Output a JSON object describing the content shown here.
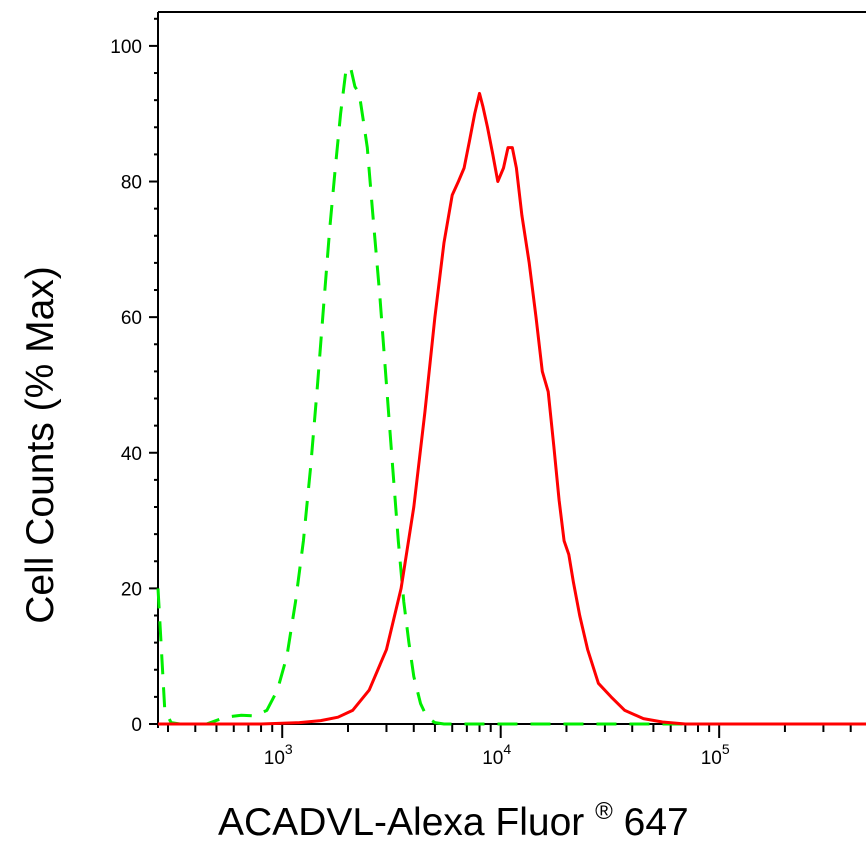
{
  "chart_data": {
    "type": "line",
    "xlabel": "ACADVL-Alexa Fluor",
    "xlabel_mark": "®",
    "xlabel_suffix": " 647",
    "ylabel": "Cell Counts (% Max)",
    "x_scale": "log",
    "xlim": [
      270,
      470000
    ],
    "ylim": [
      0,
      105
    ],
    "y_ticks": [
      0,
      20,
      40,
      60,
      80,
      100
    ],
    "x_ticks": [
      {
        "value": 1000,
        "base": "10",
        "exp": "3"
      },
      {
        "value": 10000,
        "base": "10",
        "exp": "4"
      },
      {
        "value": 100000,
        "base": "10",
        "exp": "5"
      }
    ],
    "grid": false,
    "series": [
      {
        "color": "#00ee00",
        "style": "dashed",
        "x": [
          270,
          290,
          310,
          340,
          380,
          450,
          550,
          650,
          750,
          850,
          950,
          1050,
          1150,
          1250,
          1350,
          1450,
          1550,
          1650,
          1750,
          1850,
          1950,
          2050,
          2150,
          2250,
          2350,
          2450,
          2600,
          2800,
          3000,
          3200,
          3400,
          3600,
          3800,
          4000,
          4300,
          4600,
          5000,
          5500,
          7000,
          10000,
          50000,
          470000
        ],
        "y": [
          20,
          2,
          0.2,
          0,
          0,
          0,
          1,
          1.3,
          1.2,
          2,
          5,
          10,
          18,
          27,
          38,
          50,
          62,
          73,
          82,
          90,
          96,
          97,
          94,
          93,
          89,
          85,
          75,
          63,
          50,
          38,
          27,
          18,
          12,
          7,
          3,
          1,
          0.2,
          0,
          0,
          0,
          0,
          0
        ]
      },
      {
        "color": "#ff0000",
        "style": "solid",
        "x": [
          270,
          800,
          1200,
          1500,
          1800,
          2100,
          2500,
          3000,
          3500,
          4000,
          4500,
          5000,
          5500,
          6000,
          6400,
          6800,
          7200,
          7600,
          8000,
          8300,
          8700,
          9200,
          9700,
          10300,
          10800,
          11300,
          11800,
          12500,
          13500,
          14500,
          15500,
          16500,
          17500,
          18500,
          19500,
          20500,
          21500,
          23000,
          25000,
          28000,
          32000,
          37000,
          45000,
          55000,
          70000,
          100000,
          470000
        ],
        "y": [
          0,
          0,
          0.2,
          0.5,
          1,
          2,
          5,
          11,
          20,
          32,
          46,
          60,
          71,
          78,
          80,
          82,
          86,
          90,
          93,
          91,
          88,
          84,
          80,
          82,
          85,
          85,
          82,
          75,
          68,
          60,
          52,
          49,
          41,
          33,
          27,
          25,
          21,
          16,
          11,
          6,
          4,
          2,
          0.8,
          0.3,
          0,
          0,
          0
        ]
      }
    ]
  }
}
